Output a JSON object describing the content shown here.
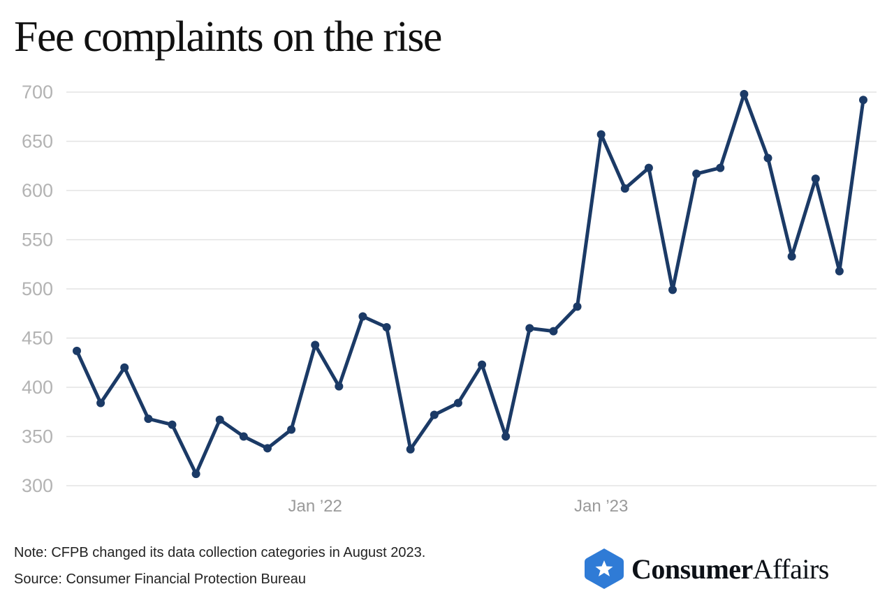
{
  "chart_data": {
    "type": "line",
    "title": "Fee complaints on the rise",
    "xlabel": "",
    "ylabel": "",
    "ylim": [
      300,
      700
    ],
    "yticks": [
      300,
      350,
      400,
      450,
      500,
      550,
      600,
      650,
      700
    ],
    "x_tick_labels": [
      {
        "index": 10,
        "label": "Jan ’22"
      },
      {
        "index": 22,
        "label": "Jan ’23"
      }
    ],
    "x": [
      "2021-03",
      "2021-04",
      "2021-05",
      "2021-06",
      "2021-07",
      "2021-08",
      "2021-09",
      "2021-10",
      "2021-11",
      "2021-12",
      "2022-01",
      "2022-02",
      "2022-03",
      "2022-04",
      "2022-05",
      "2022-06",
      "2022-07",
      "2022-08",
      "2022-09",
      "2022-10",
      "2022-11",
      "2022-12",
      "2023-01",
      "2023-02",
      "2023-03",
      "2023-04",
      "2023-05",
      "2023-06",
      "2023-07",
      "2023-08",
      "2023-09",
      "2023-10",
      "2023-11",
      "2023-12"
    ],
    "series": [
      {
        "name": "Fee complaints",
        "color": "#1b3a66",
        "values": [
          437,
          384,
          420,
          368,
          362,
          312,
          367,
          350,
          338,
          357,
          443,
          401,
          472,
          461,
          337,
          372,
          384,
          423,
          350,
          460,
          457,
          482,
          657,
          602,
          623,
          499,
          617,
          623,
          698,
          633,
          533,
          612,
          518,
          692
        ]
      }
    ],
    "grid": true,
    "legend": "none"
  },
  "note": "Note: CFPB changed its data collection categories in August 2023.",
  "source": "Source: Consumer Financial Protection Bureau",
  "logo": {
    "bold": "Consumer",
    "regular": "Affairs",
    "color": "#2f7bd6"
  }
}
